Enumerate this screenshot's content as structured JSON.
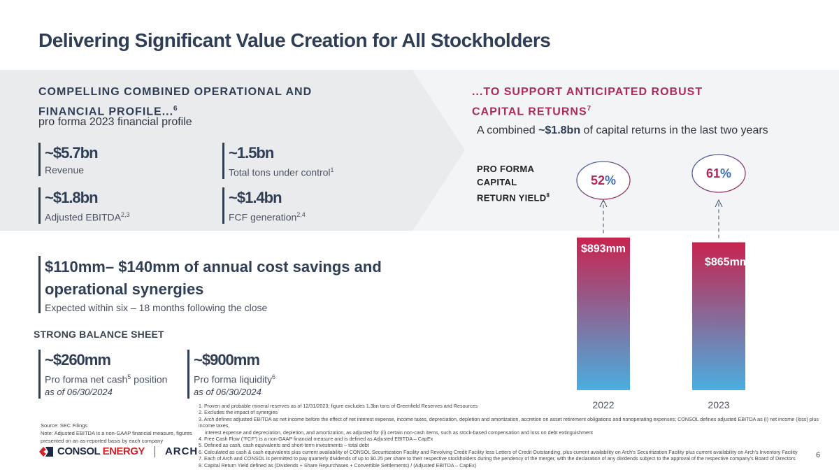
{
  "title": "Delivering Significant Value Creation for All Stockholders",
  "left_section": {
    "heading_line1": "COMPELLING COMBINED OPERATIONAL AND",
    "heading_line2": "FINANCIAL PROFILE...",
    "heading_sup": "6",
    "subheading": "pro forma 2023 financial profile",
    "metrics": [
      {
        "value": "~$5.7bn",
        "label": "Revenue",
        "sup": ""
      },
      {
        "value": "~1.5bn",
        "label": "Total tons under control",
        "sup": "1"
      },
      {
        "value": "~$1.8bn",
        "label": "Adjusted EBITDA",
        "sup": "2,3"
      },
      {
        "value": "~$1.4bn",
        "label": "FCF generation",
        "sup": "2,4"
      }
    ]
  },
  "synergies": {
    "value_line1": "$110mm– $140mm of annual cost savings and",
    "value_line2": "operational synergies",
    "label": "Expected within six – 18 months following the close"
  },
  "balance_sheet": {
    "heading": "STRONG BALANCE SHEET",
    "items": [
      {
        "value": "~$260mm",
        "label_pre": "Pro forma net cash",
        "sup": "5",
        "label_post": " position",
        "asof": "as of 06/30/2024"
      },
      {
        "value": "~$900mm",
        "label_pre": "Pro forma liquidity",
        "sup": "6",
        "label_post": "",
        "asof": "as of 06/30/2024"
      }
    ]
  },
  "right_section": {
    "heading_line1": "...TO SUPPORT ANTICIPATED ROBUST",
    "heading_line2": "CAPITAL RETURNS",
    "heading_sup": "7",
    "sub_pre": "A combined ",
    "sub_bold": "~$1.8bn",
    "sub_post": " of capital returns in the last two years",
    "yield_line1": "PRO FORMA",
    "yield_line2": "CAPITAL",
    "yield_line3": "RETURN YIELD",
    "yield_sup": "8"
  },
  "chart_data": {
    "type": "bar",
    "categories": [
      "2022",
      "2023"
    ],
    "values": [
      893,
      865
    ],
    "value_labels": [
      "$893mm",
      "$865mm"
    ],
    "yields": [
      "52",
      "61"
    ],
    "yield_unit": "%",
    "ylim": [
      0,
      1000
    ],
    "colors": {
      "top": "#c8234f",
      "bottom": "#4aaee0",
      "yield_red": "#b02a57",
      "yield_blue": "#3f6fb5"
    }
  },
  "source": {
    "line1": "Source: SEC Filings",
    "line2": "Note: Adjusted EBITDA is a non-GAAP financial measure, figures",
    "line3": "presented on an as-reported basis by each company"
  },
  "footnotes": [
    "1.  Proven and probable mineral reserves as of 12/31/2023; figure excludes 1.3bn tons of Greenfield Reserves and Resources",
    "2.  Excludes the impact of synergies",
    "3.  Arch defines adjusted EBITDA as net income before the effect of net interest expense, income taxes, depreciation, depletion and amortization, accretion on asset retirement obligations and nonoperating expenses; CONSOL defines adjusted EBITDA as (i) net income (loss) plus income taxes,",
    "interest expense and depreciation, depletion, and amortization, as adjusted for (ii) certain non-cash items, such as stock-based compensation and loss on debt extinguishment",
    "4.  Free Cash Flow (\"FCF\") is a non-GAAP financial measure and is defined as Adjusted EBITDA – CapEx",
    "5.  Defined as cash, cash equivalents and short-term investments – total debt",
    "6.  Calculated as cash & cash equivalents plus current availability of CONSOL Securitization Facility and Revolving Credit Facility less Letters of Credit Outstanding, plus current availability on Arch's Securitization Facility plus current availability on Arch's Inventory Facility",
    "7.  Each of Arch and CONSOL is permitted to pay quarterly dividends of up to $0.25 per share to their respective stockholders during the pendency of the merger, with the declaration of any dividends subject to the approval of the respective company's Board of Directors",
    "8.  Capital Return Yield defined as (Dividends + Share Repurchases + Convertible Settlements) / (Adjusted EBITDA – CapEx)"
  ],
  "logo": {
    "consol_a": "CONSOL ",
    "consol_b": "ENERGY",
    "arch": "ARCH"
  },
  "page_number": "6"
}
